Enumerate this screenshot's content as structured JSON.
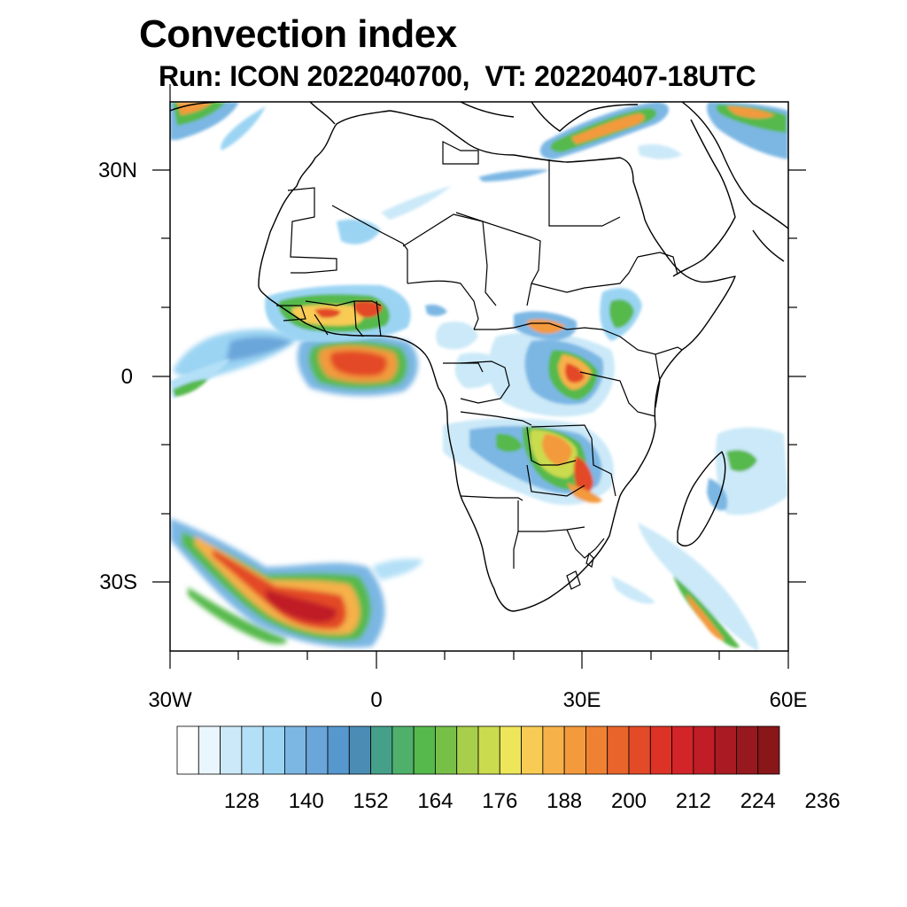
{
  "title": "Convection index",
  "subtitle": "Run: ICON 2022040700,  VT: 20220407-18UTC",
  "map": {
    "region": "Africa",
    "lon_range": [
      -30,
      60
    ],
    "lat_range": [
      -40,
      40
    ],
    "lon_ticks": [
      "30W",
      "0",
      "30E",
      "60E"
    ],
    "lat_ticks": [
      "30N",
      "0",
      "30S"
    ]
  },
  "colorbar": {
    "labels": [
      "128",
      "140",
      "152",
      "164",
      "176",
      "188",
      "200",
      "212",
      "224",
      "236"
    ],
    "colors": [
      "#ffffff",
      "#eaf6fd",
      "#cbe9f8",
      "#b4e0f7",
      "#9bd4f3",
      "#7cb7e4",
      "#6aa6da",
      "#5698cd",
      "#4b8cb5",
      "#45a08a",
      "#4fb06c",
      "#56b94c",
      "#77c048",
      "#a7cf4b",
      "#cadb4e",
      "#eee65a",
      "#f8cb54",
      "#f6b149",
      "#f39a3c",
      "#ef8133",
      "#e9642a",
      "#e34a27",
      "#dc3326",
      "#d32429",
      "#c01d26",
      "#aa1a22",
      "#97181f",
      "#891618"
    ]
  }
}
